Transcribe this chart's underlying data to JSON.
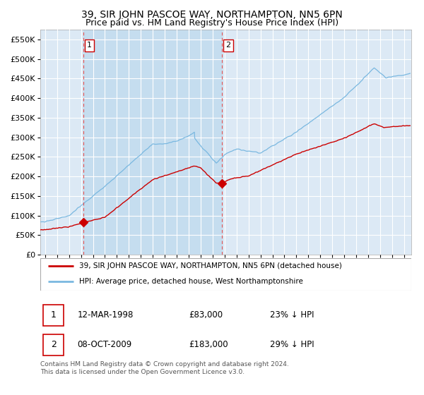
{
  "title": "39, SIR JOHN PASCOE WAY, NORTHAMPTON, NN5 6PN",
  "subtitle": "Price paid vs. HM Land Registry's House Price Index (HPI)",
  "title_fontsize": 10,
  "subtitle_fontsize": 9,
  "plot_bg_color": "#dce9f5",
  "grid_color": "#ffffff",
  "sale1_date_num": 1998.2,
  "sale1_price": 83000,
  "sale1_label": "1",
  "sale2_date_num": 2009.78,
  "sale2_price": 183000,
  "sale2_label": "2",
  "vline_color": "#e05050",
  "marker_color": "#cc0000",
  "hpi_line_color": "#7ab8e0",
  "price_line_color": "#cc0000",
  "span_color": "#c5ddef",
  "legend1_label": "39, SIR JOHN PASCOE WAY, NORTHAMPTON, NN5 6PN (detached house)",
  "legend2_label": "HPI: Average price, detached house, West Northamptonshire",
  "footer_text": "Contains HM Land Registry data © Crown copyright and database right 2024.\nThis data is licensed under the Open Government Licence v3.0.",
  "table_rows": [
    {
      "num": "1",
      "date": "12-MAR-1998",
      "price": "£83,000",
      "pct": "23% ↓ HPI"
    },
    {
      "num": "2",
      "date": "08-OCT-2009",
      "price": "£183,000",
      "pct": "29% ↓ HPI"
    }
  ],
  "ylim": [
    0,
    575000
  ],
  "yticks": [
    0,
    50000,
    100000,
    150000,
    200000,
    250000,
    300000,
    350000,
    400000,
    450000,
    500000,
    550000
  ],
  "xlim_start": 1994.6,
  "xlim_end": 2025.6
}
